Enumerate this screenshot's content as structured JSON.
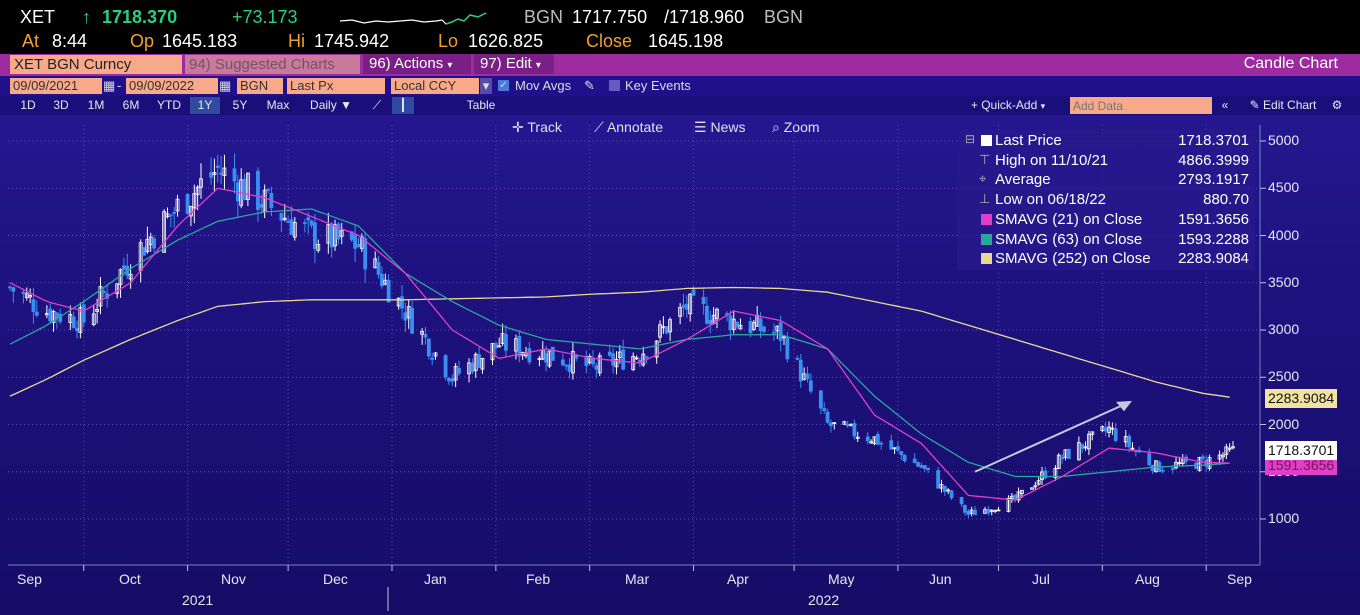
{
  "header": {
    "ticker": "XET",
    "arrow": "↑",
    "last": "1718.370",
    "change": "+73.173",
    "bid_ask_src1": "BGN",
    "bid": "1717.750",
    "ask": "/1718.960",
    "bid_ask_src2": "BGN",
    "at_label": "At",
    "time": "8:44",
    "open_label": "Op",
    "open": "1645.183",
    "high_label": "Hi",
    "high": "1745.942",
    "low_label": "Lo",
    "low": "1626.825",
    "close_label": "Close",
    "close": "1645.198"
  },
  "toolbar": {
    "security": "XET BGN Curncy",
    "suggested": "94) Suggested Charts",
    "actions": "96) Actions",
    "edit": "97) Edit",
    "chart_type": "Candle Chart"
  },
  "params": {
    "start_date": "09/09/2021",
    "dash": "-",
    "end_date": "09/09/2022",
    "source": "BGN",
    "field": "Last Px",
    "currency": "Local CCY",
    "mov_avgs": "Mov Avgs",
    "key_events": "Key Events"
  },
  "periods": [
    "1D",
    "3D",
    "1M",
    "6M",
    "YTD",
    "1Y",
    "5Y",
    "Max"
  ],
  "selected_period": "1Y",
  "frequency": "Daily",
  "table_btn": "Table",
  "quick_add": "+ Quick-Add",
  "add_data_placeholder": "Add Data",
  "edit_chart": "Edit Chart",
  "chart_tools": {
    "track": "Track",
    "annotate": "Annotate",
    "news": "News",
    "zoom": "Zoom"
  },
  "legend": [
    {
      "label": "Last Price",
      "value": "1718.3701",
      "color": "#ffffff"
    },
    {
      "label": "High on 11/10/21",
      "value": "4866.3999",
      "color": ""
    },
    {
      "label": "Average",
      "value": "2793.1917",
      "color": ""
    },
    {
      "label": "Low on 06/18/22",
      "value": "880.70",
      "color": ""
    },
    {
      "label": "SMAVG (21)  on Close",
      "value": "1591.3656",
      "color": "#e040c8"
    },
    {
      "label": "SMAVG (63)  on Close",
      "value": "1593.2288",
      "color": "#2aa79b"
    },
    {
      "label": "SMAVG (252)  on Close",
      "value": "2283.9084",
      "color": "#e8d890"
    }
  ],
  "price_tags": {
    "last": "1718.3701",
    "sma252": "2283.9084",
    "sma21": "1591.3656"
  },
  "chart_data": {
    "type": "candlestick",
    "y_ticks": [
      "5000",
      "4500",
      "4000",
      "3500",
      "3000",
      "2500",
      "2000",
      "1500",
      "1000"
    ],
    "ylim": [
      700,
      5250
    ],
    "months": [
      "Sep",
      "Oct",
      "Nov",
      "Dec",
      "Jan",
      "Feb",
      "Mar",
      "Apr",
      "May",
      "Jun",
      "Jul",
      "Aug",
      "Sep"
    ],
    "years": [
      "2021",
      "2022"
    ],
    "x": [
      "2021-09-09",
      "2021-09-20",
      "2021-10-01",
      "2021-10-15",
      "2021-10-29",
      "2021-11-10",
      "2021-11-24",
      "2021-12-08",
      "2021-12-22",
      "2022-01-05",
      "2022-01-19",
      "2022-02-02",
      "2022-02-16",
      "2022-03-02",
      "2022-03-16",
      "2022-03-30",
      "2022-04-13",
      "2022-04-27",
      "2022-05-11",
      "2022-05-25",
      "2022-06-08",
      "2022-06-22",
      "2022-07-06",
      "2022-07-20",
      "2022-08-03",
      "2022-08-17",
      "2022-08-31",
      "2022-09-09"
    ],
    "close": [
      3450,
      3200,
      3100,
      3750,
      4300,
      4700,
      4350,
      4000,
      3900,
      3200,
      2500,
      2850,
      2750,
      2600,
      2750,
      3250,
      3100,
      2950,
      2000,
      1850,
      1550,
      1050,
      1200,
      1650,
      1950,
      1550,
      1600,
      1718
    ],
    "sma21": [
      3500,
      3300,
      3200,
      3500,
      4100,
      4500,
      4400,
      4200,
      4000,
      3600,
      3000,
      2700,
      2800,
      2700,
      2650,
      2900,
      3200,
      3100,
      2800,
      2100,
      1800,
      1250,
      1200,
      1450,
      1750,
      1700,
      1600,
      1591
    ],
    "sma63": [
      2850,
      3050,
      3300,
      3650,
      3950,
      4150,
      4250,
      4280,
      4100,
      3600,
      3300,
      3050,
      2900,
      2850,
      2800,
      2900,
      2950,
      2950,
      2800,
      2300,
      1900,
      1600,
      1450,
      1450,
      1500,
      1550,
      1570,
      1593
    ],
    "sma252": [
      2300,
      2480,
      2680,
      2900,
      3100,
      3250,
      3300,
      3320,
      3320,
      3320,
      3330,
      3340,
      3350,
      3380,
      3400,
      3440,
      3450,
      3440,
      3400,
      3300,
      3200,
      3050,
      2900,
      2750,
      2600,
      2450,
      2330,
      2284
    ]
  },
  "colors": {
    "bg": "#1e1280",
    "up_candle": "#ffffff",
    "down_candle": "#3a8ff0",
    "sma21": "#e040c8",
    "sma63": "#2aa79b",
    "sma252": "#e8d890",
    "last_tag": "#ffffff",
    "sma252_tag": "#f3e3a0",
    "sma21_tag": "#e040c8"
  }
}
